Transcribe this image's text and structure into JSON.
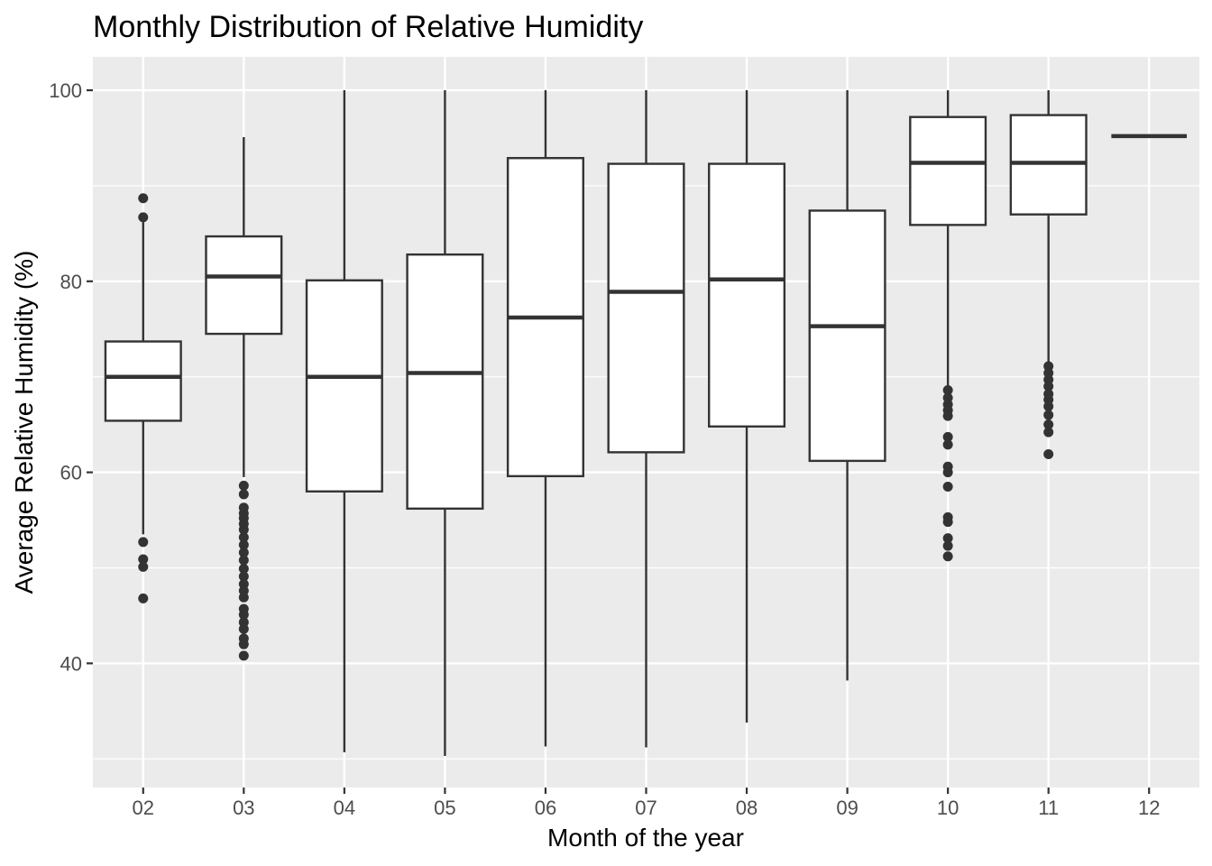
{
  "chart_data": {
    "type": "boxplot",
    "title": "Monthly Distribution of Relative Humidity",
    "xlabel": "Month of the year",
    "ylabel": "Average Relative Humidity (%)",
    "ylim": [
      27,
      103.5
    ],
    "yticks": [
      40,
      60,
      80,
      100
    ],
    "ytick_labels": [
      "40",
      "60",
      "80",
      "100"
    ],
    "grid": true,
    "panel_background": "#ebebeb",
    "grid_color": "#ffffff",
    "box_fill": "#ffffff",
    "line_color": "#333333",
    "categories": [
      "02",
      "03",
      "04",
      "05",
      "06",
      "07",
      "08",
      "09",
      "10",
      "11",
      "12"
    ],
    "boxes": [
      {
        "month": "02",
        "whisker_low": 53.5,
        "q1": 65.4,
        "median": 70.0,
        "q3": 73.7,
        "whisker_high": 86.2,
        "outliers": [
          88.7,
          86.7,
          52.7,
          50.9,
          50.1,
          46.8
        ]
      },
      {
        "month": "03",
        "whisker_low": 59.5,
        "q1": 74.5,
        "median": 80.5,
        "q3": 84.7,
        "whisker_high": 95.1,
        "outliers": [
          58.6,
          57.7,
          56.3,
          55.7,
          55.2,
          54.6,
          54.0,
          53.2,
          52.4,
          51.6,
          50.8,
          49.9,
          49.1,
          48.3,
          47.6,
          46.9,
          45.7,
          45.1,
          44.3,
          43.6,
          42.6,
          42.0,
          40.8
        ]
      },
      {
        "month": "04",
        "whisker_low": 30.7,
        "q1": 58.0,
        "median": 70.0,
        "q3": 80.1,
        "whisker_high": 100.0,
        "outliers": []
      },
      {
        "month": "05",
        "whisker_low": 30.3,
        "q1": 56.2,
        "median": 70.4,
        "q3": 82.8,
        "whisker_high": 100.0,
        "outliers": []
      },
      {
        "month": "06",
        "whisker_low": 31.3,
        "q1": 59.6,
        "median": 76.2,
        "q3": 92.9,
        "whisker_high": 100.0,
        "outliers": []
      },
      {
        "month": "07",
        "whisker_low": 31.2,
        "q1": 62.1,
        "median": 78.9,
        "q3": 92.3,
        "whisker_high": 100.0,
        "outliers": []
      },
      {
        "month": "08",
        "whisker_low": 33.8,
        "q1": 64.8,
        "median": 80.2,
        "q3": 92.3,
        "whisker_high": 100.0,
        "outliers": []
      },
      {
        "month": "09",
        "whisker_low": 38.2,
        "q1": 61.2,
        "median": 75.3,
        "q3": 87.4,
        "whisker_high": 100.0,
        "outliers": []
      },
      {
        "month": "10",
        "whisker_low": 69.0,
        "q1": 85.9,
        "median": 92.4,
        "q3": 97.2,
        "whisker_high": 100.0,
        "outliers": [
          68.6,
          67.8,
          67.1,
          66.5,
          65.9,
          63.7,
          62.9,
          60.6,
          60.0,
          58.5,
          55.3,
          54.8,
          53.1,
          52.3,
          51.2
        ]
      },
      {
        "month": "11",
        "whisker_low": 71.5,
        "q1": 87.0,
        "median": 92.4,
        "q3": 97.4,
        "whisker_high": 100.0,
        "outliers": [
          71.1,
          70.4,
          69.7,
          69.0,
          68.2,
          67.6,
          66.9,
          66.0,
          65.0,
          64.2,
          61.9
        ]
      },
      {
        "month": "12",
        "whisker_low": 95.2,
        "q1": 95.2,
        "median": 95.2,
        "q3": 95.2,
        "whisker_high": 95.2,
        "outliers": []
      }
    ]
  }
}
